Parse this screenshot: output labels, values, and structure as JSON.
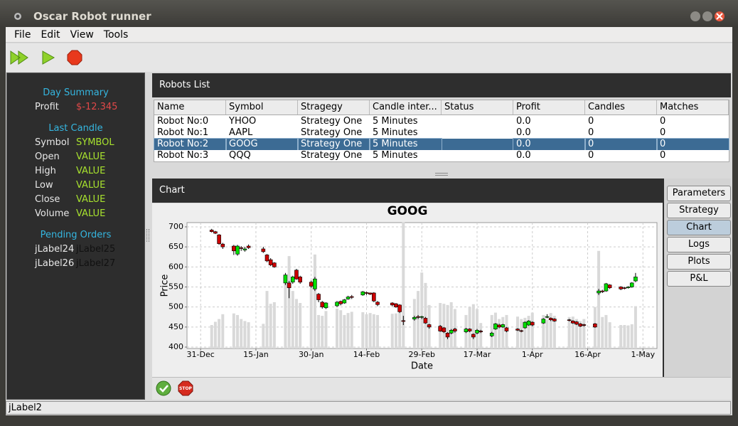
{
  "window": {
    "title": "Oscar Robot runner"
  },
  "menu": [
    "File",
    "Edit",
    "View",
    "Tools"
  ],
  "day_summary": {
    "title": "Day Summary",
    "rows": [
      [
        "Profit",
        "$-12.345"
      ]
    ]
  },
  "last_candle": {
    "title": "Last Candle",
    "rows": [
      [
        "Symbol",
        "SYMBOL"
      ],
      [
        "Open",
        "VALUE"
      ],
      [
        "High",
        "VALUE"
      ],
      [
        "Low",
        "VALUE"
      ],
      [
        "Close",
        "VALUE"
      ],
      [
        "Volume",
        "VALUE"
      ]
    ]
  },
  "pending_orders": {
    "title": "Pending Orders",
    "rows": [
      [
        "jLabel24",
        "jLabel25"
      ],
      [
        "jLabel26",
        "jLabel27"
      ]
    ]
  },
  "robots_list": {
    "title": "Robots List",
    "columns": [
      "Name",
      "Symbol",
      "Stragegy",
      "Candle inter...",
      "Status",
      "Profit",
      "Candles",
      "Matches"
    ],
    "rows": [
      [
        "Robot No:0",
        "YHOO",
        "Strategy One",
        "5 Minutes",
        null,
        "0.0",
        "0",
        "0"
      ],
      [
        "Robot No:1",
        "AAPL",
        "Strategy One",
        "5 Minutes",
        null,
        "0.0",
        "0",
        "0"
      ],
      [
        "Robot No:2",
        "GOOG",
        "Strategy One",
        "5 Minutes",
        null,
        "0.0",
        "0",
        "0"
      ],
      [
        "Robot No:3",
        "QQQ",
        "Strategy One",
        "5 Minutes",
        null,
        "0.0",
        "0",
        "0"
      ]
    ],
    "selected_row": 2
  },
  "chart_panel": {
    "title": "Chart"
  },
  "tabs": [
    "Parameters",
    "Strategy",
    "Chart",
    "Logs",
    "Plots",
    "P&L"
  ],
  "active_tab": 2,
  "footer_buttons": {
    "stop": "STOP"
  },
  "status": "jLabel2",
  "chart_data": {
    "type": "candlestick",
    "title": "GOOG",
    "x_label": "Date",
    "y_label": "Price",
    "x": [
      3,
      4,
      5,
      6,
      9,
      10,
      11,
      12,
      13,
      17,
      18,
      19,
      20,
      23,
      24,
      25,
      26,
      27,
      30,
      31,
      32,
      33,
      34,
      37,
      38,
      39,
      40,
      41,
      44,
      45,
      46,
      47,
      48,
      52,
      53,
      54,
      55,
      58,
      59,
      60,
      61,
      62,
      65,
      66,
      67,
      68,
      69,
      72,
      73,
      74,
      75,
      76,
      79,
      80,
      81,
      82,
      83,
      86,
      87,
      88,
      89,
      90,
      93,
      94,
      95,
      96,
      100,
      101,
      102,
      103,
      104,
      107,
      108,
      109,
      110,
      111,
      114,
      115,
      116,
      117,
      118
    ],
    "open": [
      692,
      688,
      680,
      657,
      652,
      632,
      648,
      642,
      652,
      645,
      630,
      618,
      610,
      560,
      560,
      562,
      592,
      575,
      562,
      545,
      532,
      512,
      498,
      503,
      514,
      510,
      520,
      526,
      530,
      536,
      535,
      535,
      512,
      510,
      508,
      505,
      466,
      470,
      476,
      475,
      472,
      456,
      452,
      448,
      435,
      435,
      445,
      438,
      445,
      432,
      435,
      440,
      428,
      445,
      455,
      450,
      448,
      445,
      441,
      448,
      455,
      462,
      460,
      475,
      472,
      470,
      468,
      465,
      463,
      458,
      456,
      458,
      535,
      540,
      540,
      555,
      550,
      548,
      548,
      550,
      565
    ],
    "high": [
      695,
      690,
      682,
      660,
      655,
      655,
      652,
      650,
      656,
      650,
      632,
      622,
      612,
      585,
      565,
      578,
      595,
      578,
      566,
      575,
      535,
      515,
      512,
      515,
      516,
      520,
      528,
      530,
      540,
      538,
      536,
      537,
      515,
      512,
      510,
      507,
      478,
      478,
      480,
      478,
      475,
      458,
      455,
      450,
      437,
      445,
      448,
      448,
      447,
      434,
      445,
      443,
      438,
      460,
      458,
      458,
      450,
      447,
      443,
      464,
      467,
      464,
      472,
      482,
      474,
      472,
      470,
      467,
      465,
      460,
      458,
      460,
      545,
      543,
      560,
      557,
      552,
      550,
      552,
      562,
      585
    ],
    "low": [
      686,
      682,
      655,
      645,
      630,
      628,
      640,
      638,
      645,
      635,
      612,
      602,
      598,
      555,
      522,
      558,
      568,
      558,
      548,
      540,
      512,
      496,
      495,
      500,
      504,
      508,
      518,
      520,
      528,
      530,
      530,
      512,
      502,
      502,
      498,
      485,
      455,
      466,
      470,
      470,
      458,
      446,
      438,
      435,
      420,
      432,
      436,
      435,
      437,
      420,
      432,
      435,
      425,
      443,
      447,
      448,
      437,
      440,
      437,
      446,
      453,
      452,
      458,
      472,
      465,
      463,
      464,
      458,
      455,
      450,
      451,
      448,
      530,
      535,
      538,
      545,
      542,
      544,
      546,
      548,
      562
    ],
    "close": [
      688,
      684,
      658,
      650,
      640,
      652,
      646,
      645,
      648,
      638,
      615,
      605,
      600,
      580,
      548,
      575,
      570,
      562,
      552,
      570,
      518,
      500,
      510,
      512,
      508,
      518,
      525,
      524,
      538,
      534,
      532,
      515,
      506,
      505,
      500,
      488,
      464,
      474,
      474,
      476,
      460,
      450,
      440,
      438,
      425,
      442,
      440,
      445,
      440,
      425,
      442,
      438,
      435,
      458,
      450,
      456,
      440,
      442,
      440,
      462,
      465,
      455,
      470,
      476,
      468,
      465,
      467,
      460,
      457,
      452,
      454,
      450,
      540,
      538,
      558,
      548,
      545,
      547,
      550,
      560,
      575
    ],
    "volume": [
      455,
      463,
      470,
      482,
      484,
      480,
      470,
      465,
      462,
      458,
      540,
      508,
      512,
      565,
      627,
      540,
      520,
      510,
      560,
      631,
      480,
      478,
      490,
      496,
      492,
      480,
      485,
      488,
      487,
      482,
      485,
      482,
      480,
      483,
      484,
      486,
      712,
      520,
      540,
      586,
      560,
      505,
      510,
      508,
      505,
      512,
      495,
      480,
      500,
      507,
      495,
      460,
      480,
      486,
      470,
      475,
      480,
      476,
      470,
      473,
      478,
      486,
      480,
      468,
      485,
      478,
      475,
      476,
      470,
      465,
      470,
      500,
      640,
      475,
      480,
      462,
      455,
      455,
      454,
      457,
      502
    ],
    "up_color": "#00dd00",
    "down_color": "#cc0000",
    "volume_color": "#d9d9d9",
    "grid": true,
    "xlim": [
      -3.7,
      123.8
    ],
    "ylim": [
      396.5,
      710.6
    ],
    "xticks": [
      {
        "value": 0,
        "label": "31-Dec"
      },
      {
        "value": 15,
        "label": "15-Jan"
      },
      {
        "value": 30,
        "label": "30-Jan"
      },
      {
        "value": 45,
        "label": "14-Feb"
      },
      {
        "value": 60,
        "label": "29-Feb"
      },
      {
        "value": 75,
        "label": "17-Mar"
      },
      {
        "value": 90,
        "label": "1-Apr"
      },
      {
        "value": 105,
        "label": "16-Apr"
      },
      {
        "value": 120,
        "label": "1-May"
      }
    ],
    "yticks": [
      400,
      450,
      500,
      550,
      600,
      650,
      700
    ]
  }
}
